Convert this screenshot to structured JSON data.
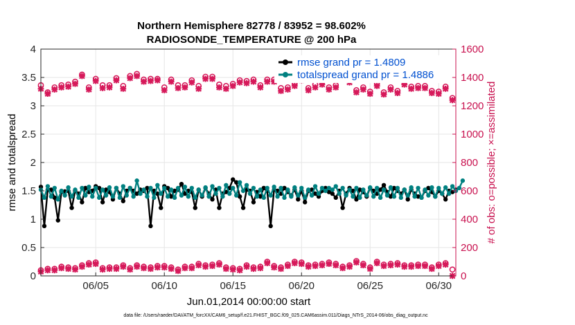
{
  "chart_data": {
    "type": "line",
    "title": "Northern Hemisphere 82778 / 83952 = 98.602%",
    "subtitle": "RADIOSONDE_TEMPERATURE @ 200 hPa",
    "xlabel": "Jun.01,2014 00:00:00 start",
    "ylabel_left": "rmse and totalspread",
    "ylabel_right": "# of obs: o=possible; ×=assimilated",
    "x_ticks": [
      "06/05",
      "06/10",
      "06/15",
      "06/20",
      "06/25",
      "06/30"
    ],
    "x_tick_days": [
      5,
      10,
      15,
      20,
      25,
      30
    ],
    "xlim": [
      1,
      31.25
    ],
    "ylim_left": [
      0,
      4
    ],
    "ylim_right": [
      0,
      1600
    ],
    "y_ticks_left": [
      "0",
      "0.5",
      "1",
      "1.5",
      "2",
      "2.5",
      "3",
      "3.5",
      "4"
    ],
    "y_ticks_right": [
      "0",
      "200",
      "400",
      "600",
      "800",
      "1000",
      "1200",
      "1400",
      "1600"
    ],
    "grid": true,
    "legend_position": "top-right",
    "footer": "data file: /Users/raeder/DAI/ATM_forcXX/CAM6_setup/f.e21.FHIST_BGC.f09_025.CAM6assim.011/Diags_NTrS_2014-06/obs_diag_output.nc",
    "colors": {
      "rmse": "#000000",
      "spread": "#008080",
      "obs": "#d6195a",
      "axis_right": "#c8104e",
      "legend_text": "#0050d0"
    },
    "series": [
      {
        "name": "rmse grand pr = 1.4809",
        "axis": "left",
        "x_start": 1.0,
        "x_step": 0.25,
        "values": [
          1.57,
          0.88,
          1.52,
          1.52,
          1.38,
          0.98,
          1.48,
          1.49,
          1.5,
          1.2,
          1.5,
          1.45,
          1.3,
          1.55,
          1.48,
          1.5,
          1.58,
          1.55,
          1.3,
          1.52,
          1.48,
          1.35,
          1.55,
          1.45,
          1.32,
          1.5,
          1.55,
          1.5,
          1.45,
          1.52,
          1.5,
          1.55,
          0.88,
          1.5,
          1.45,
          1.2,
          1.58,
          1.55,
          1.4,
          1.5,
          1.52,
          1.62,
          1.45,
          1.5,
          1.48,
          1.2,
          1.52,
          1.4,
          1.55,
          1.45,
          1.35,
          1.52,
          1.2,
          1.45,
          1.48,
          1.55,
          1.7,
          1.65,
          1.4,
          1.2,
          1.52,
          1.5,
          1.3,
          1.48,
          1.4,
          1.55,
          1.5,
          0.88,
          1.52,
          1.5,
          1.45,
          1.55,
          1.48,
          1.42,
          1.52,
          1.35,
          1.5,
          1.3,
          1.5,
          1.52,
          1.45,
          1.4,
          1.5,
          1.55,
          1.48,
          1.45,
          1.38,
          1.5,
          1.2,
          1.45,
          1.55,
          1.5,
          1.35,
          1.52,
          1.48,
          1.4,
          1.55,
          1.5,
          1.45,
          1.52,
          1.6,
          1.48,
          1.4,
          1.55,
          1.5,
          1.45,
          1.52,
          1.35,
          1.52,
          1.45,
          1.4,
          1.38,
          1.5,
          1.55,
          1.48,
          1.4,
          1.5,
          1.45,
          1.35,
          1.5,
          1.48,
          1.52
        ]
      },
      {
        "name": "totalspread grand pr = 1.4886",
        "axis": "left",
        "x_start": 1.0,
        "x_step": 0.25,
        "values": [
          1.52,
          1.38,
          1.58,
          1.4,
          1.55,
          1.35,
          1.5,
          1.42,
          1.56,
          1.4,
          1.52,
          1.38,
          1.55,
          1.42,
          1.57,
          1.4,
          1.55,
          1.38,
          1.52,
          1.42,
          1.56,
          1.4,
          1.55,
          1.38,
          1.58,
          1.42,
          1.55,
          1.4,
          1.68,
          1.45,
          1.52,
          1.4,
          1.55,
          1.38,
          1.6,
          1.45,
          1.55,
          1.4,
          1.52,
          1.38,
          1.55,
          1.42,
          1.57,
          1.4,
          1.55,
          1.38,
          1.52,
          1.42,
          1.56,
          1.4,
          1.58,
          1.45,
          1.55,
          1.4,
          1.6,
          1.45,
          1.55,
          1.42,
          1.65,
          1.5,
          1.6,
          1.45,
          1.55,
          1.4,
          1.52,
          1.38,
          1.55,
          1.42,
          1.57,
          1.4,
          1.55,
          1.38,
          1.52,
          1.4,
          1.56,
          1.42,
          1.55,
          1.38,
          1.52,
          1.42,
          1.58,
          1.45,
          1.55,
          1.5,
          1.55,
          1.52,
          1.58,
          1.45,
          1.55,
          1.42,
          1.52,
          1.4,
          1.55,
          1.38,
          1.52,
          1.42,
          1.56,
          1.4,
          1.55,
          1.38,
          1.52,
          1.42,
          1.56,
          1.4,
          1.55,
          1.38,
          1.52,
          1.42,
          1.56,
          1.4,
          1.55,
          1.38,
          1.52,
          1.42,
          1.56,
          1.4,
          1.55,
          1.45,
          1.56,
          1.45,
          1.58,
          1.5,
          1.55,
          1.68
        ]
      },
      {
        "name": "obs possible",
        "axis": "right",
        "marker": "circle",
        "x_start": 1.0,
        "x_step": 0.5,
        "values": [
          1345,
          1295,
          1330,
          1345,
          1350,
          1370,
          1420,
          1330,
          1390,
          1345,
          1345,
          1395,
          1340,
          1410,
          1425,
          1385,
          1390,
          1390,
          1330,
          1385,
          1345,
          1345,
          1380,
          1340,
          1405,
          1405,
          1350,
          1340,
          1355,
          1380,
          1375,
          1385,
          1345,
          1385,
          1385,
          1325,
          1330,
          1355,
          1395,
          1325,
          1350,
          1365,
          1330,
          1345,
          1400,
          1380,
          1310,
          1330,
          1300,
          1355,
          1295,
          1330,
          1305,
          1365,
          1335,
          1340,
          1340,
          1305,
          1300,
          1335,
          1255
        ]
      },
      {
        "name": "obs assimilated",
        "axis": "right",
        "marker": "cross",
        "x_start": 1.0,
        "x_step": 0.5,
        "values": [
          1320,
          1285,
          1315,
          1330,
          1335,
          1355,
          1410,
          1315,
          1375,
          1325,
          1330,
          1380,
          1320,
          1395,
          1410,
          1370,
          1375,
          1380,
          1310,
          1370,
          1325,
          1330,
          1365,
          1320,
          1390,
          1390,
          1330,
          1320,
          1340,
          1365,
          1360,
          1370,
          1330,
          1370,
          1370,
          1305,
          1315,
          1340,
          1380,
          1310,
          1330,
          1350,
          1315,
          1330,
          1385,
          1365,
          1295,
          1315,
          1285,
          1340,
          1280,
          1315,
          1290,
          1350,
          1320,
          1325,
          1325,
          1290,
          1285,
          1320,
          1240
        ]
      },
      {
        "name": "low obs possible",
        "axis": "right",
        "marker": "circle",
        "x_start": 1.0,
        "x_step": 0.5,
        "values": [
          40,
          50,
          50,
          65,
          60,
          55,
          75,
          90,
          95,
          55,
          60,
          60,
          75,
          55,
          75,
          65,
          60,
          70,
          70,
          60,
          45,
          65,
          65,
          85,
          75,
          80,
          90,
          60,
          55,
          50,
          75,
          60,
          65,
          100,
          70,
          60,
          80,
          100,
          95,
          75,
          80,
          85,
          95,
          85,
          65,
          75,
          105,
          85,
          60,
          100,
          80,
          85,
          90,
          75,
          75,
          80,
          80,
          60,
          80,
          90,
          45
        ]
      },
      {
        "name": "low obs assimilated",
        "axis": "right",
        "marker": "cross",
        "x_start": 1.0,
        "x_step": 0.5,
        "values": [
          30,
          40,
          40,
          55,
          50,
          45,
          65,
          80,
          85,
          45,
          50,
          50,
          65,
          45,
          65,
          55,
          50,
          60,
          60,
          50,
          35,
          55,
          55,
          75,
          65,
          70,
          80,
          50,
          45,
          40,
          65,
          50,
          55,
          90,
          60,
          50,
          70,
          90,
          85,
          65,
          70,
          75,
          85,
          75,
          55,
          65,
          95,
          75,
          50,
          90,
          70,
          75,
          80,
          65,
          65,
          70,
          70,
          50,
          70,
          80,
          0
        ]
      }
    ]
  }
}
